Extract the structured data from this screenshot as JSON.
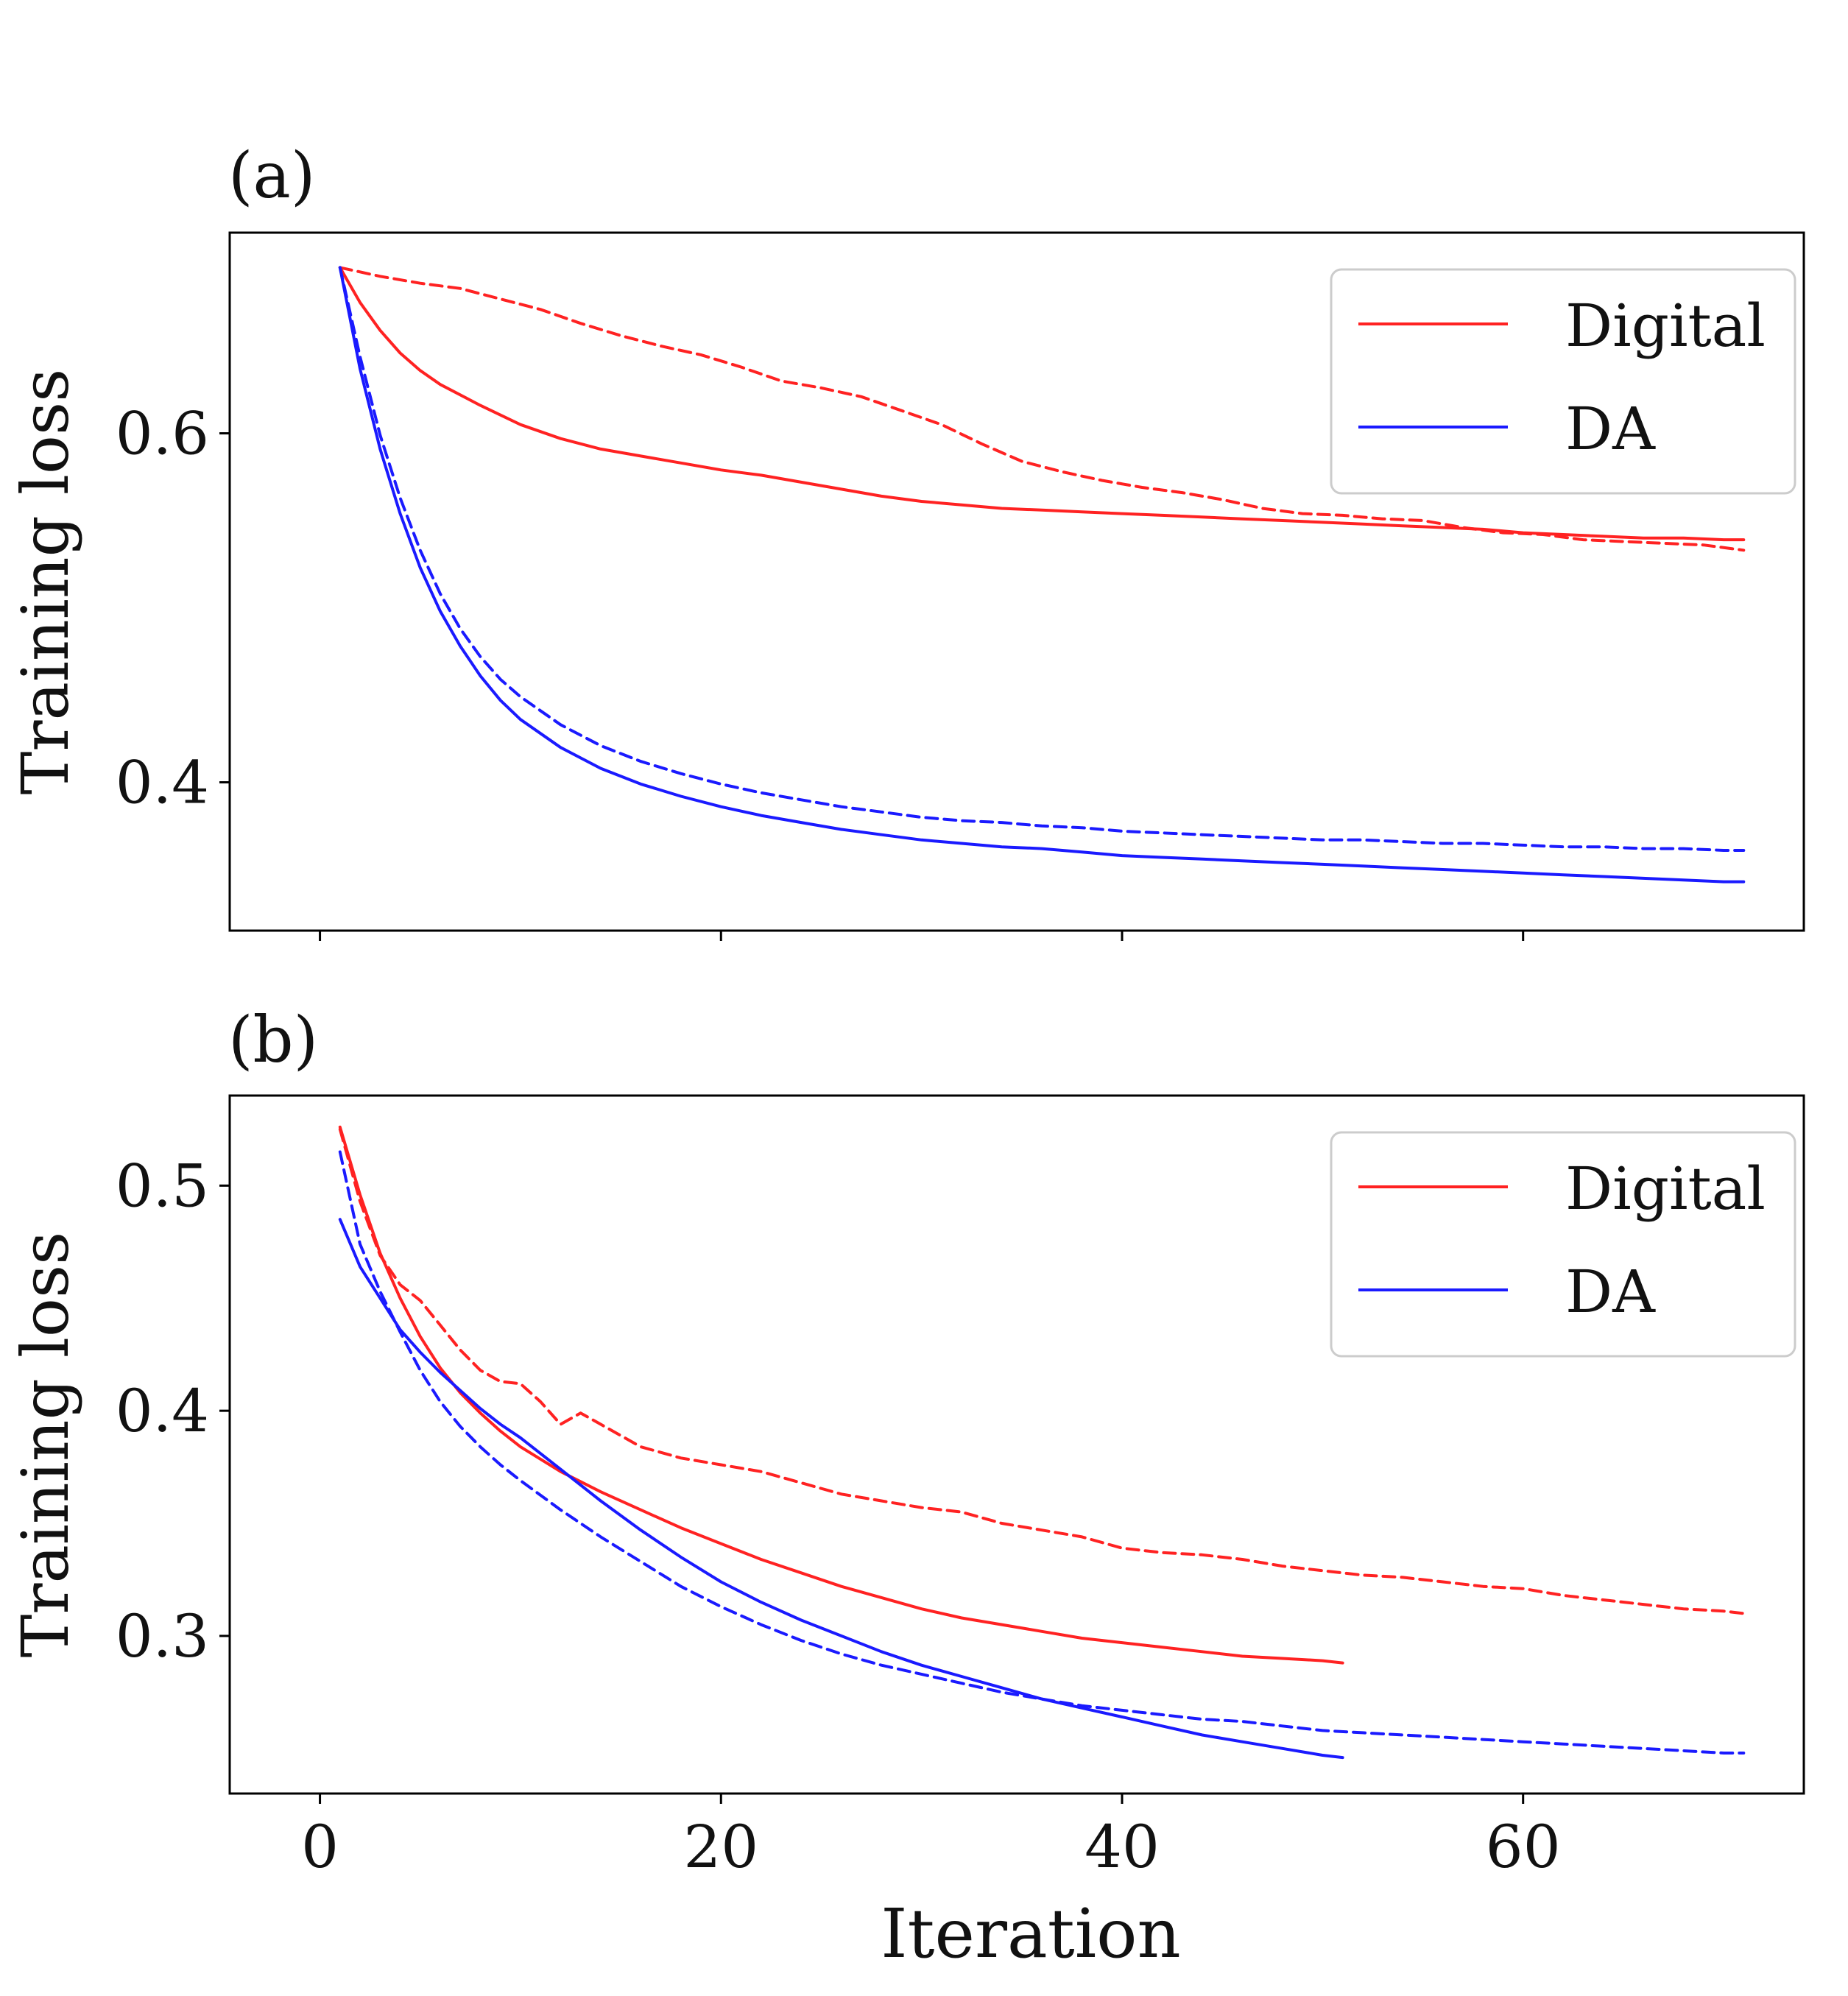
{
  "colors": {
    "digital": "#ff2222",
    "da": "#1a1aff",
    "axes": "#000000"
  },
  "chart_data": [
    {
      "type": "line",
      "panel_label": "(a)",
      "xlabel": "",
      "ylabel": "Training loss",
      "xlim": [
        -4.5,
        74
      ],
      "ylim": [
        0.315,
        0.715
      ],
      "xticks": [
        0,
        20,
        40,
        60
      ],
      "xtick_labels_visible": false,
      "yticks": [
        0.4,
        0.6
      ],
      "ytick_labels": [
        "0.4",
        "0.6"
      ],
      "grid": false,
      "legend": {
        "placement": "top-right",
        "entries": [
          "Digital",
          "DA"
        ]
      },
      "series": [
        {
          "name": "Digital",
          "color_key": "digital",
          "dash": "solid",
          "x": [
            1,
            2,
            3,
            4,
            5,
            6,
            8,
            10,
            12,
            14,
            16,
            18,
            20,
            22,
            24,
            26,
            28,
            30,
            32,
            34,
            36,
            38,
            40,
            42,
            44,
            46,
            48,
            50,
            52,
            54,
            56,
            58,
            60,
            62,
            64,
            66,
            68,
            70,
            71
          ],
          "y": [
            0.695,
            0.675,
            0.659,
            0.646,
            0.636,
            0.628,
            0.616,
            0.605,
            0.597,
            0.591,
            0.587,
            0.583,
            0.579,
            0.576,
            0.572,
            0.568,
            0.564,
            0.561,
            0.559,
            0.557,
            0.556,
            0.555,
            0.554,
            0.553,
            0.552,
            0.551,
            0.55,
            0.549,
            0.548,
            0.547,
            0.546,
            0.545,
            0.543,
            0.542,
            0.541,
            0.54,
            0.54,
            0.539,
            0.539
          ]
        },
        {
          "name": "",
          "color_key": "digital",
          "dash": "dashed",
          "x": [
            1,
            3,
            5,
            7,
            9,
            11,
            13,
            15,
            17,
            19,
            21,
            23,
            25,
            27,
            29,
            31,
            33,
            35,
            37,
            39,
            41,
            43,
            45,
            47,
            49,
            51,
            53,
            55,
            57,
            59,
            61,
            63,
            65,
            67,
            69,
            71
          ],
          "y": [
            0.695,
            0.69,
            0.686,
            0.683,
            0.677,
            0.671,
            0.663,
            0.656,
            0.65,
            0.645,
            0.638,
            0.63,
            0.626,
            0.621,
            0.613,
            0.605,
            0.594,
            0.584,
            0.578,
            0.573,
            0.569,
            0.566,
            0.562,
            0.557,
            0.554,
            0.553,
            0.551,
            0.55,
            0.546,
            0.543,
            0.542,
            0.539,
            0.538,
            0.537,
            0.536,
            0.533
          ]
        },
        {
          "name": "DA",
          "color_key": "da",
          "dash": "solid",
          "x": [
            1,
            2,
            3,
            4,
            5,
            6,
            7,
            8,
            9,
            10,
            12,
            14,
            16,
            18,
            20,
            22,
            24,
            26,
            28,
            30,
            32,
            34,
            36,
            38,
            40,
            42,
            44,
            46,
            48,
            50,
            52,
            54,
            56,
            58,
            60,
            62,
            64,
            66,
            68,
            70,
            71
          ],
          "y": [
            0.695,
            0.637,
            0.591,
            0.554,
            0.523,
            0.498,
            0.478,
            0.461,
            0.447,
            0.436,
            0.42,
            0.408,
            0.399,
            0.392,
            0.386,
            0.381,
            0.377,
            0.373,
            0.37,
            0.367,
            0.365,
            0.363,
            0.362,
            0.36,
            0.358,
            0.357,
            0.356,
            0.355,
            0.354,
            0.353,
            0.352,
            0.351,
            0.35,
            0.349,
            0.348,
            0.347,
            0.346,
            0.345,
            0.344,
            0.343,
            0.343
          ]
        },
        {
          "name": "",
          "color_key": "da",
          "dash": "dashed",
          "x": [
            1,
            2,
            3,
            4,
            5,
            6,
            7,
            8,
            9,
            10,
            12,
            14,
            16,
            18,
            20,
            22,
            24,
            26,
            28,
            30,
            32,
            34,
            36,
            38,
            40,
            42,
            44,
            46,
            48,
            50,
            52,
            54,
            56,
            58,
            60,
            62,
            64,
            66,
            68,
            70,
            71
          ],
          "y": [
            0.695,
            0.644,
            0.599,
            0.563,
            0.533,
            0.508,
            0.488,
            0.472,
            0.459,
            0.449,
            0.433,
            0.421,
            0.412,
            0.405,
            0.399,
            0.394,
            0.39,
            0.386,
            0.383,
            0.38,
            0.378,
            0.377,
            0.375,
            0.374,
            0.372,
            0.371,
            0.37,
            0.369,
            0.368,
            0.367,
            0.367,
            0.366,
            0.365,
            0.365,
            0.364,
            0.363,
            0.363,
            0.362,
            0.362,
            0.361,
            0.361
          ]
        }
      ]
    },
    {
      "type": "line",
      "panel_label": "(b)",
      "xlabel": "Iteration",
      "ylabel": "Training loss",
      "xlim": [
        -4.5,
        74
      ],
      "ylim": [
        0.23,
        0.54
      ],
      "xticks": [
        0,
        20,
        40,
        60
      ],
      "xtick_labels": [
        "0",
        "20",
        "40",
        "60"
      ],
      "yticks": [
        0.3,
        0.4,
        0.5
      ],
      "ytick_labels": [
        "0.3",
        "0.4",
        "0.5"
      ],
      "grid": false,
      "legend": {
        "placement": "top-right",
        "entries": [
          "Digital",
          "DA"
        ]
      },
      "series": [
        {
          "name": "Digital",
          "color_key": "digital",
          "dash": "solid",
          "x": [
            1,
            2,
            3,
            4,
            5,
            6,
            7,
            8,
            9,
            10,
            12,
            14,
            16,
            18,
            20,
            22,
            24,
            26,
            28,
            30,
            32,
            34,
            36,
            38,
            40,
            42,
            44,
            46,
            48,
            50,
            51
          ],
          "y": [
            0.526,
            0.496,
            0.47,
            0.45,
            0.433,
            0.419,
            0.408,
            0.399,
            0.391,
            0.384,
            0.373,
            0.364,
            0.356,
            0.348,
            0.341,
            0.334,
            0.328,
            0.322,
            0.317,
            0.312,
            0.308,
            0.305,
            0.302,
            0.299,
            0.297,
            0.295,
            0.293,
            0.291,
            0.29,
            0.289,
            0.288
          ]
        },
        {
          "name": "",
          "color_key": "digital",
          "dash": "dashed",
          "x": [
            1,
            2,
            3,
            4,
            5,
            6,
            7,
            8,
            9,
            10,
            11,
            12,
            13,
            14,
            15,
            16,
            18,
            20,
            22,
            24,
            26,
            28,
            30,
            32,
            34,
            36,
            38,
            40,
            42,
            44,
            46,
            48,
            50,
            52,
            54,
            56,
            58,
            60,
            62,
            64,
            66,
            68,
            70,
            71
          ],
          "y": [
            0.525,
            0.493,
            0.469,
            0.456,
            0.449,
            0.438,
            0.427,
            0.418,
            0.413,
            0.412,
            0.404,
            0.394,
            0.399,
            0.394,
            0.389,
            0.384,
            0.379,
            0.376,
            0.373,
            0.368,
            0.363,
            0.36,
            0.357,
            0.355,
            0.35,
            0.347,
            0.344,
            0.339,
            0.337,
            0.336,
            0.334,
            0.331,
            0.329,
            0.327,
            0.326,
            0.324,
            0.322,
            0.321,
            0.318,
            0.316,
            0.314,
            0.312,
            0.311,
            0.31
          ]
        },
        {
          "name": "DA",
          "color_key": "da",
          "dash": "solid",
          "x": [
            1,
            2,
            3,
            4,
            5,
            6,
            7,
            8,
            9,
            10,
            12,
            14,
            16,
            18,
            20,
            22,
            24,
            26,
            28,
            30,
            32,
            34,
            36,
            38,
            40,
            42,
            44,
            46,
            48,
            50,
            51
          ],
          "y": [
            0.485,
            0.464,
            0.45,
            0.436,
            0.426,
            0.417,
            0.409,
            0.401,
            0.394,
            0.388,
            0.374,
            0.36,
            0.347,
            0.335,
            0.324,
            0.315,
            0.307,
            0.3,
            0.293,
            0.287,
            0.282,
            0.277,
            0.272,
            0.268,
            0.264,
            0.26,
            0.256,
            0.253,
            0.25,
            0.247,
            0.246
          ]
        },
        {
          "name": "",
          "color_key": "da",
          "dash": "dashed",
          "x": [
            1,
            2,
            3,
            4,
            5,
            6,
            7,
            8,
            9,
            10,
            12,
            14,
            16,
            18,
            20,
            22,
            24,
            26,
            28,
            30,
            32,
            34,
            36,
            38,
            40,
            42,
            44,
            46,
            48,
            50,
            52,
            54,
            56,
            58,
            60,
            62,
            64,
            66,
            68,
            70,
            71
          ],
          "y": [
            0.515,
            0.474,
            0.453,
            0.435,
            0.418,
            0.404,
            0.393,
            0.384,
            0.376,
            0.369,
            0.356,
            0.344,
            0.333,
            0.322,
            0.313,
            0.305,
            0.298,
            0.292,
            0.287,
            0.283,
            0.279,
            0.275,
            0.272,
            0.269,
            0.267,
            0.265,
            0.263,
            0.262,
            0.26,
            0.258,
            0.257,
            0.256,
            0.255,
            0.254,
            0.253,
            0.252,
            0.251,
            0.25,
            0.249,
            0.248,
            0.248
          ]
        }
      ]
    }
  ]
}
